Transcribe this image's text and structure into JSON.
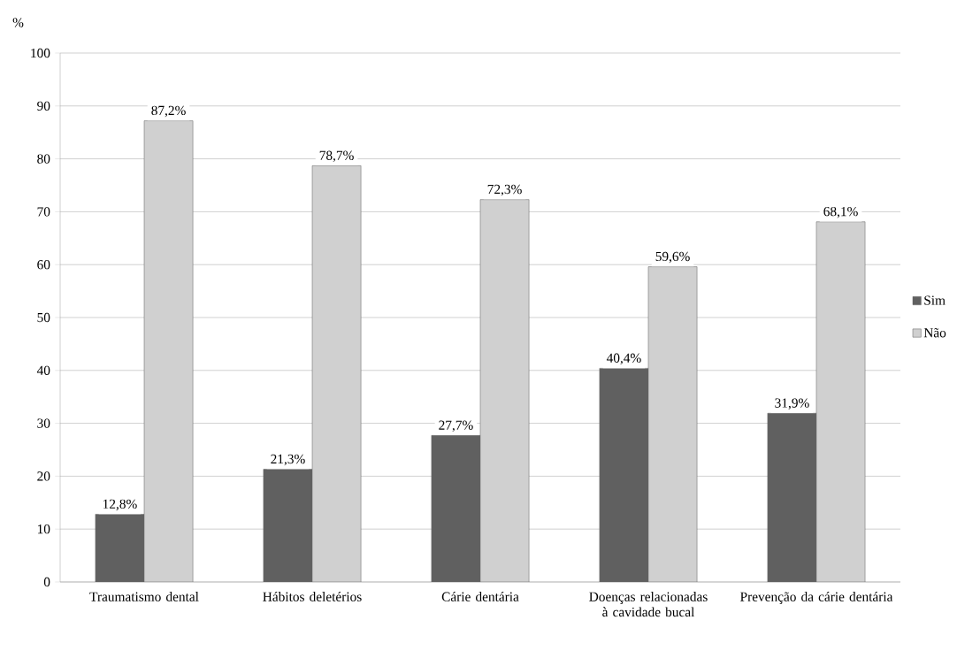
{
  "chart_data": {
    "type": "bar",
    "ylabel": "%",
    "categories": [
      "Traumatismo dental",
      "Hábitos deletérios",
      "Cárie dentária",
      "Doenças relacionadas à cavidade bucal",
      "Prevenção da cárie dentária"
    ],
    "series": [
      {
        "name": "Sim",
        "color": "#606060",
        "values": [
          12.8,
          21.3,
          27.7,
          40.4,
          31.9
        ],
        "value_labels": [
          "12,8%",
          "21,3%",
          "27,7%",
          "40,4%",
          "31,9%"
        ]
      },
      {
        "name": "Não",
        "color": "#d0d0d0",
        "values": [
          87.2,
          78.7,
          72.3,
          59.6,
          68.1
        ],
        "value_labels": [
          "87,2%",
          "78,7%",
          "72,3%",
          "59,6%",
          "68,1%"
        ]
      }
    ],
    "ylim": [
      0,
      100
    ],
    "yticks": [
      0,
      10,
      20,
      30,
      40,
      50,
      60,
      70,
      80,
      90,
      100
    ],
    "grid": "y",
    "legend": "right"
  }
}
